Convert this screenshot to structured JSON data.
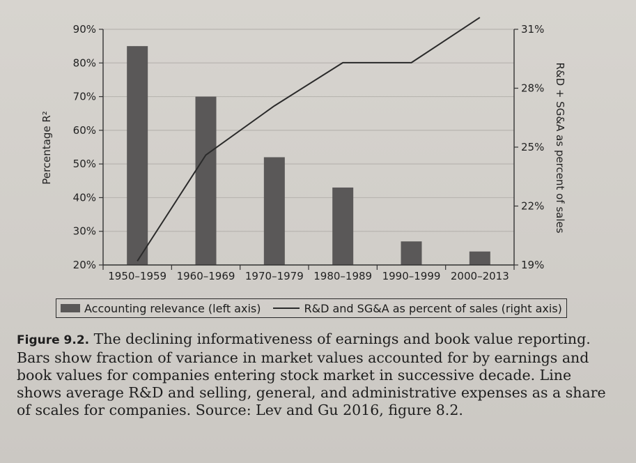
{
  "chart_data": {
    "type": "bar",
    "categories": [
      "1950–1959",
      "1960–1969",
      "1970–1979",
      "1980–1989",
      "1990–1999",
      "2000–2013"
    ],
    "series": [
      {
        "name": "Accounting relevance (left axis)",
        "type": "bar",
        "axis": "left",
        "values": [
          85,
          70,
          52,
          43,
          27,
          24
        ]
      },
      {
        "name": "R&D and SG&A as percent of sales (right axis)",
        "type": "line",
        "axis": "right",
        "values": [
          19.2,
          24.6,
          27.1,
          29.3,
          29.3,
          31.6
        ]
      }
    ],
    "ylabel": "Percentage R²",
    "y2label": "R&D + SG&A as percent of sales",
    "ylim": [
      20,
      90
    ],
    "y2lim": [
      19,
      31
    ],
    "y_ticks": [
      "20%",
      "30%",
      "40%",
      "50%",
      "60%",
      "70%",
      "80%",
      "90%"
    ],
    "y2_ticks": [
      "19%",
      "22%",
      "25%",
      "28%",
      "31%"
    ],
    "grid": true,
    "legend_position": "bottom",
    "colors": {
      "bar": "#5a5858",
      "line": "#2a2a2a",
      "grid": "#b8b5b0"
    }
  },
  "legend": {
    "bar_label": "Accounting relevance (left axis)",
    "line_label": "R&D and SG&A as percent of sales (right axis)"
  },
  "caption": {
    "label": "Figure 9.2.",
    "text": "The declining informativeness of earnings and book value reporting. Bars show fraction of variance in market values accounted for by earnings and book values for companies entering stock market in successive decade. Line shows average R&D and selling, general, and administrative expenses as a share of scales for companies. Source: Lev and Gu 2016, figure 8.2."
  }
}
